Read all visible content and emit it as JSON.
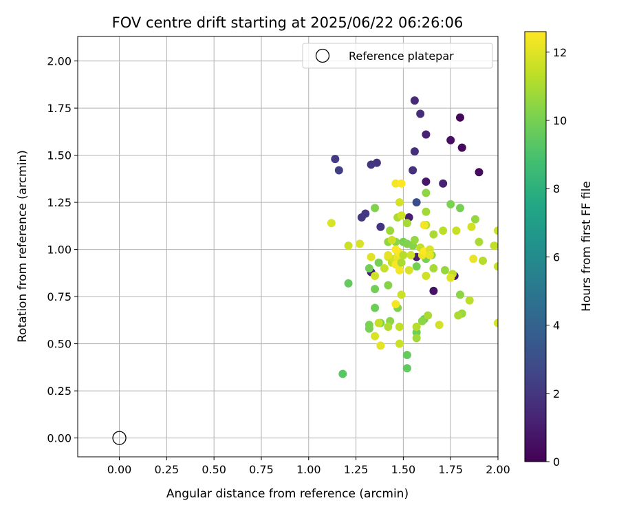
{
  "chart_data": {
    "type": "scatter",
    "title": "FOV centre drift starting at 2025/06/22 06:26:06",
    "xlabel": "Angular distance from reference (arcmin)",
    "ylabel": "Rotation from reference (arcmin)",
    "xlim": [
      -0.22,
      2.0
    ],
    "ylim": [
      -0.1,
      2.13
    ],
    "x_ticks": [
      0.0,
      0.25,
      0.5,
      0.75,
      1.0,
      1.25,
      1.5,
      1.75,
      2.0
    ],
    "x_tick_labels": [
      "0.00",
      "0.25",
      "0.50",
      "0.75",
      "1.00",
      "1.25",
      "1.50",
      "1.75",
      "2.00"
    ],
    "y_ticks": [
      0.0,
      0.25,
      0.5,
      0.75,
      1.0,
      1.25,
      1.5,
      1.75,
      2.0
    ],
    "y_tick_labels": [
      "0.00",
      "0.25",
      "0.50",
      "0.75",
      "1.00",
      "1.25",
      "1.50",
      "1.75",
      "2.00"
    ],
    "grid": true,
    "legend": {
      "position": "top-right",
      "entries": [
        {
          "label": "Reference platepar",
          "marker": "hollow-circle"
        }
      ]
    },
    "reference_point": {
      "x": 0.0,
      "y": 0.0
    },
    "colorbar": {
      "label": "Hours from first FF file",
      "colormap": "viridis",
      "range": [
        0,
        12.6
      ],
      "ticks": [
        0,
        2,
        4,
        6,
        8,
        10,
        12
      ],
      "tick_labels": [
        "0",
        "2",
        "4",
        "6",
        "8",
        "10",
        "12"
      ]
    },
    "points": [
      {
        "x": 1.8,
        "y": 1.7,
        "c": 0.2
      },
      {
        "x": 1.81,
        "y": 1.54,
        "c": 0.3
      },
      {
        "x": 1.9,
        "y": 1.41,
        "c": 0.4
      },
      {
        "x": 1.75,
        "y": 1.58,
        "c": 0.5
      },
      {
        "x": 1.66,
        "y": 0.78,
        "c": 0.6
      },
      {
        "x": 1.77,
        "y": 0.86,
        "c": 0.7
      },
      {
        "x": 1.62,
        "y": 1.36,
        "c": 0.8
      },
      {
        "x": 1.57,
        "y": 0.96,
        "c": 1.0
      },
      {
        "x": 1.53,
        "y": 1.17,
        "c": 1.0
      },
      {
        "x": 1.33,
        "y": 0.88,
        "c": 1.1
      },
      {
        "x": 1.62,
        "y": 1.61,
        "c": 1.2
      },
      {
        "x": 1.71,
        "y": 1.35,
        "c": 1.2
      },
      {
        "x": 1.56,
        "y": 1.79,
        "c": 1.5
      },
      {
        "x": 1.59,
        "y": 1.72,
        "c": 1.6
      },
      {
        "x": 1.56,
        "y": 1.52,
        "c": 1.7
      },
      {
        "x": 1.55,
        "y": 1.42,
        "c": 1.8
      },
      {
        "x": 1.36,
        "y": 1.46,
        "c": 1.9
      },
      {
        "x": 1.38,
        "y": 1.12,
        "c": 1.9
      },
      {
        "x": 1.33,
        "y": 1.45,
        "c": 2.0
      },
      {
        "x": 1.3,
        "y": 1.19,
        "c": 2.1
      },
      {
        "x": 1.28,
        "y": 1.17,
        "c": 2.1
      },
      {
        "x": 1.14,
        "y": 1.48,
        "c": 2.2
      },
      {
        "x": 1.16,
        "y": 1.42,
        "c": 2.3
      },
      {
        "x": 1.57,
        "y": 1.25,
        "c": 3.0
      },
      {
        "x": 1.18,
        "y": 0.34,
        "c": 9.3
      },
      {
        "x": 1.52,
        "y": 0.37,
        "c": 9.5
      },
      {
        "x": 1.52,
        "y": 0.44,
        "c": 9.6
      },
      {
        "x": 1.57,
        "y": 0.56,
        "c": 9.8
      },
      {
        "x": 1.61,
        "y": 0.63,
        "c": 9.7
      },
      {
        "x": 1.35,
        "y": 0.69,
        "c": 9.8
      },
      {
        "x": 1.21,
        "y": 0.82,
        "c": 9.6
      },
      {
        "x": 1.35,
        "y": 0.79,
        "c": 9.9
      },
      {
        "x": 1.32,
        "y": 0.58,
        "c": 10.0
      },
      {
        "x": 1.32,
        "y": 0.6,
        "c": 10.1
      },
      {
        "x": 1.38,
        "y": 0.61,
        "c": 10.2
      },
      {
        "x": 1.43,
        "y": 0.62,
        "c": 10.4
      },
      {
        "x": 1.32,
        "y": 0.9,
        "c": 9.9
      },
      {
        "x": 1.37,
        "y": 0.93,
        "c": 10.0
      },
      {
        "x": 1.42,
        "y": 0.81,
        "c": 10.3
      },
      {
        "x": 1.47,
        "y": 0.69,
        "c": 10.2
      },
      {
        "x": 1.57,
        "y": 0.91,
        "c": 9.9
      },
      {
        "x": 1.62,
        "y": 0.95,
        "c": 10.0
      },
      {
        "x": 1.65,
        "y": 0.97,
        "c": 10.3
      },
      {
        "x": 1.5,
        "y": 1.04,
        "c": 10.0
      },
      {
        "x": 1.52,
        "y": 1.03,
        "c": 10.2
      },
      {
        "x": 1.55,
        "y": 1.02,
        "c": 10.3
      },
      {
        "x": 1.46,
        "y": 1.04,
        "c": 10.4
      },
      {
        "x": 1.42,
        "y": 1.04,
        "c": 10.5
      },
      {
        "x": 1.56,
        "y": 1.05,
        "c": 10.6
      },
      {
        "x": 1.43,
        "y": 1.1,
        "c": 10.7
      },
      {
        "x": 1.47,
        "y": 0.99,
        "c": 10.8
      },
      {
        "x": 1.35,
        "y": 1.22,
        "c": 10.2
      },
      {
        "x": 1.62,
        "y": 1.3,
        "c": 10.5
      },
      {
        "x": 1.75,
        "y": 1.24,
        "c": 10.1
      },
      {
        "x": 1.8,
        "y": 1.22,
        "c": 10.0
      },
      {
        "x": 1.88,
        "y": 1.16,
        "c": 10.6
      },
      {
        "x": 1.62,
        "y": 1.2,
        "c": 10.8
      },
      {
        "x": 1.52,
        "y": 1.14,
        "c": 10.9
      },
      {
        "x": 1.47,
        "y": 1.17,
        "c": 11.0
      },
      {
        "x": 1.62,
        "y": 1.13,
        "c": 11.2
      },
      {
        "x": 1.66,
        "y": 1.08,
        "c": 11.0
      },
      {
        "x": 1.71,
        "y": 1.1,
        "c": 11.3
      },
      {
        "x": 1.78,
        "y": 1.1,
        "c": 11.5
      },
      {
        "x": 1.86,
        "y": 1.12,
        "c": 11.8
      },
      {
        "x": 1.72,
        "y": 0.89,
        "c": 10.6
      },
      {
        "x": 1.66,
        "y": 0.9,
        "c": 10.9
      },
      {
        "x": 1.76,
        "y": 0.87,
        "c": 11.3
      },
      {
        "x": 1.8,
        "y": 0.76,
        "c": 10.4
      },
      {
        "x": 1.81,
        "y": 0.66,
        "c": 10.7
      },
      {
        "x": 1.79,
        "y": 0.65,
        "c": 11.0
      },
      {
        "x": 1.6,
        "y": 0.62,
        "c": 10.4
      },
      {
        "x": 1.57,
        "y": 0.53,
        "c": 10.8
      },
      {
        "x": 1.57,
        "y": 0.59,
        "c": 11.2
      },
      {
        "x": 1.63,
        "y": 0.65,
        "c": 11.0
      },
      {
        "x": 1.48,
        "y": 0.59,
        "c": 11.4
      },
      {
        "x": 1.42,
        "y": 0.59,
        "c": 11.1
      },
      {
        "x": 1.37,
        "y": 0.61,
        "c": 11.5
      },
      {
        "x": 1.48,
        "y": 0.5,
        "c": 11.6
      },
      {
        "x": 1.35,
        "y": 0.54,
        "c": 11.9
      },
      {
        "x": 1.38,
        "y": 0.49,
        "c": 12.1
      },
      {
        "x": 1.69,
        "y": 0.6,
        "c": 11.8
      },
      {
        "x": 1.49,
        "y": 0.76,
        "c": 11.6
      },
      {
        "x": 1.46,
        "y": 0.71,
        "c": 12.4
      },
      {
        "x": 1.62,
        "y": 0.86,
        "c": 11.7
      },
      {
        "x": 1.75,
        "y": 0.85,
        "c": 12.0
      },
      {
        "x": 1.85,
        "y": 0.73,
        "c": 11.3
      },
      {
        "x": 1.87,
        "y": 0.95,
        "c": 12.2
      },
      {
        "x": 1.9,
        "y": 1.04,
        "c": 11.0
      },
      {
        "x": 1.92,
        "y": 0.94,
        "c": 11.2
      },
      {
        "x": 1.98,
        "y": 1.02,
        "c": 11.4
      },
      {
        "x": 2.0,
        "y": 1.1,
        "c": 11.6
      },
      {
        "x": 2.0,
        "y": 0.91,
        "c": 11.5
      },
      {
        "x": 2.0,
        "y": 0.61,
        "c": 11.8
      },
      {
        "x": 1.12,
        "y": 1.14,
        "c": 11.9
      },
      {
        "x": 1.21,
        "y": 1.02,
        "c": 11.6
      },
      {
        "x": 1.27,
        "y": 1.03,
        "c": 11.9
      },
      {
        "x": 1.33,
        "y": 0.96,
        "c": 12.0
      },
      {
        "x": 1.35,
        "y": 0.86,
        "c": 11.7
      },
      {
        "x": 1.4,
        "y": 0.9,
        "c": 11.5
      },
      {
        "x": 1.42,
        "y": 0.96,
        "c": 11.9
      },
      {
        "x": 1.44,
        "y": 0.93,
        "c": 11.4
      },
      {
        "x": 1.45,
        "y": 0.95,
        "c": 11.8
      },
      {
        "x": 1.47,
        "y": 0.96,
        "c": 12.2
      },
      {
        "x": 1.48,
        "y": 0.89,
        "c": 12.4
      },
      {
        "x": 1.46,
        "y": 0.92,
        "c": 12.5
      },
      {
        "x": 1.49,
        "y": 0.93,
        "c": 11.0
      },
      {
        "x": 1.53,
        "y": 0.89,
        "c": 11.9
      },
      {
        "x": 1.48,
        "y": 0.98,
        "c": 12.5
      },
      {
        "x": 1.46,
        "y": 1.0,
        "c": 12.6
      },
      {
        "x": 1.5,
        "y": 0.97,
        "c": 11.2
      },
      {
        "x": 1.54,
        "y": 0.97,
        "c": 11.6
      },
      {
        "x": 1.59,
        "y": 1.01,
        "c": 11.4
      },
      {
        "x": 1.6,
        "y": 0.97,
        "c": 12.3
      },
      {
        "x": 1.61,
        "y": 0.99,
        "c": 12.6
      },
      {
        "x": 1.64,
        "y": 1.0,
        "c": 11.9
      },
      {
        "x": 1.64,
        "y": 0.97,
        "c": 12.2
      },
      {
        "x": 1.61,
        "y": 1.13,
        "c": 12.4
      },
      {
        "x": 1.48,
        "y": 1.25,
        "c": 11.8
      },
      {
        "x": 1.49,
        "y": 1.18,
        "c": 11.6
      },
      {
        "x": 1.46,
        "y": 1.35,
        "c": 12.4
      },
      {
        "x": 1.49,
        "y": 1.35,
        "c": 12.6
      },
      {
        "x": 1.44,
        "y": 1.05,
        "c": 11.7
      },
      {
        "x": 1.42,
        "y": 0.97,
        "c": 12.1
      }
    ]
  }
}
